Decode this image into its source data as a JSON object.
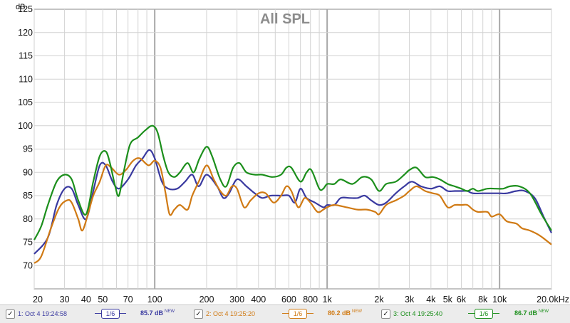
{
  "chart_data": {
    "type": "line",
    "title": "All SPL",
    "ylabel": "dB",
    "x_scale": "log",
    "xlim": [
      20,
      20000
    ],
    "ylim": [
      65,
      125
    ],
    "y_ticks": [
      70,
      75,
      80,
      85,
      90,
      95,
      100,
      105,
      110,
      115,
      120,
      125
    ],
    "x_ticks": [
      {
        "v": 20,
        "label": "20"
      },
      {
        "v": 30,
        "label": "30"
      },
      {
        "v": 40,
        "label": "40"
      },
      {
        "v": 50,
        "label": "50"
      },
      {
        "v": 70,
        "label": "70"
      },
      {
        "v": 100,
        "label": "100"
      },
      {
        "v": 200,
        "label": "200"
      },
      {
        "v": 300,
        "label": "300"
      },
      {
        "v": 400,
        "label": "400"
      },
      {
        "v": 600,
        "label": "600"
      },
      {
        "v": 800,
        "label": "800"
      },
      {
        "v": 1000,
        "label": "1k"
      },
      {
        "v": 2000,
        "label": "2k"
      },
      {
        "v": 3000,
        "label": "3k"
      },
      {
        "v": 4000,
        "label": "4k"
      },
      {
        "v": 5000,
        "label": "5k"
      },
      {
        "v": 6000,
        "label": "6k"
      },
      {
        "v": 8000,
        "label": "8k"
      },
      {
        "v": 10000,
        "label": "10k"
      },
      {
        "v": 20000,
        "label": "20.0kHz"
      }
    ],
    "grid": true,
    "series": [
      {
        "name": "1: Oct 4 19:24:58",
        "color": "#3a3aa0",
        "smoothing": "1/6",
        "level": "85.7 dB",
        "points": [
          [
            20,
            72.5
          ],
          [
            24,
            76
          ],
          [
            27,
            83
          ],
          [
            30,
            86.5
          ],
          [
            33,
            86.5
          ],
          [
            36,
            83
          ],
          [
            40,
            80
          ],
          [
            44,
            86
          ],
          [
            48,
            91.5
          ],
          [
            52,
            91.5
          ],
          [
            57,
            88
          ],
          [
            62,
            86.5
          ],
          [
            70,
            88.5
          ],
          [
            78,
            91.5
          ],
          [
            85,
            93
          ],
          [
            93,
            94.8
          ],
          [
            100,
            93
          ],
          [
            110,
            88
          ],
          [
            120,
            86.5
          ],
          [
            135,
            86.5
          ],
          [
            150,
            88
          ],
          [
            165,
            89.5
          ],
          [
            180,
            87
          ],
          [
            200,
            89.5
          ],
          [
            230,
            87
          ],
          [
            250,
            84.5
          ],
          [
            270,
            85.5
          ],
          [
            300,
            88.5
          ],
          [
            340,
            87
          ],
          [
            380,
            85.5
          ],
          [
            420,
            84.5
          ],
          [
            470,
            85
          ],
          [
            540,
            85
          ],
          [
            600,
            85
          ],
          [
            650,
            83.5
          ],
          [
            700,
            86.5
          ],
          [
            760,
            84.5
          ],
          [
            850,
            83.5
          ],
          [
            950,
            82.5
          ],
          [
            1000,
            83
          ],
          [
            1100,
            83
          ],
          [
            1200,
            84.5
          ],
          [
            1350,
            84.5
          ],
          [
            1500,
            84.5
          ],
          [
            1650,
            85
          ],
          [
            1800,
            84
          ],
          [
            2000,
            83
          ],
          [
            2200,
            83.5
          ],
          [
            2500,
            85.5
          ],
          [
            2800,
            87
          ],
          [
            3100,
            88
          ],
          [
            3500,
            87
          ],
          [
            4000,
            86.5
          ],
          [
            4500,
            87
          ],
          [
            5000,
            86
          ],
          [
            5500,
            86
          ],
          [
            6000,
            86
          ],
          [
            6500,
            86
          ],
          [
            7000,
            85.5
          ],
          [
            8000,
            85.5
          ],
          [
            9000,
            85.5
          ],
          [
            10000,
            85.5
          ],
          [
            11000,
            85.5
          ],
          [
            12500,
            86
          ],
          [
            14000,
            86
          ],
          [
            16000,
            84.5
          ],
          [
            18000,
            80.5
          ],
          [
            20000,
            77
          ]
        ]
      },
      {
        "name": "2: Oct 4 19:25:20",
        "color": "#d07a14",
        "smoothing": "1/6",
        "level": "80.2 dB",
        "points": [
          [
            20,
            70.5
          ],
          [
            22,
            72
          ],
          [
            25,
            78
          ],
          [
            28,
            82.5
          ],
          [
            31,
            84
          ],
          [
            33,
            83.5
          ],
          [
            36,
            80
          ],
          [
            38,
            77.5
          ],
          [
            41,
            81
          ],
          [
            44,
            85
          ],
          [
            48,
            88
          ],
          [
            52,
            91.5
          ],
          [
            56,
            91
          ],
          [
            62,
            89.5
          ],
          [
            68,
            90.5
          ],
          [
            75,
            92.5
          ],
          [
            82,
            93
          ],
          [
            92,
            91.5
          ],
          [
            100,
            92.5
          ],
          [
            108,
            91
          ],
          [
            115,
            86
          ],
          [
            122,
            81
          ],
          [
            130,
            82
          ],
          [
            140,
            83
          ],
          [
            155,
            82
          ],
          [
            165,
            85
          ],
          [
            180,
            88
          ],
          [
            200,
            91.5
          ],
          [
            220,
            88.5
          ],
          [
            240,
            86
          ],
          [
            260,
            85
          ],
          [
            280,
            87
          ],
          [
            300,
            86.5
          ],
          [
            330,
            82.5
          ],
          [
            360,
            84
          ],
          [
            400,
            85.5
          ],
          [
            440,
            85.5
          ],
          [
            490,
            83.5
          ],
          [
            540,
            85
          ],
          [
            580,
            87
          ],
          [
            620,
            86
          ],
          [
            680,
            82.5
          ],
          [
            740,
            84.5
          ],
          [
            800,
            83.5
          ],
          [
            880,
            81.5
          ],
          [
            950,
            82
          ],
          [
            1000,
            82.5
          ],
          [
            1100,
            83
          ],
          [
            1300,
            82.5
          ],
          [
            1500,
            82
          ],
          [
            1700,
            82
          ],
          [
            1900,
            81.5
          ],
          [
            2000,
            81
          ],
          [
            2200,
            83
          ],
          [
            2500,
            84
          ],
          [
            2800,
            85
          ],
          [
            3000,
            86
          ],
          [
            3300,
            87
          ],
          [
            3700,
            86
          ],
          [
            4100,
            85.5
          ],
          [
            4500,
            85
          ],
          [
            5000,
            82.5
          ],
          [
            5500,
            83
          ],
          [
            6000,
            83
          ],
          [
            6500,
            83
          ],
          [
            7000,
            82
          ],
          [
            7500,
            81.5
          ],
          [
            8500,
            81.5
          ],
          [
            9000,
            80.5
          ],
          [
            10000,
            81
          ],
          [
            11000,
            79.5
          ],
          [
            12500,
            79
          ],
          [
            13500,
            78
          ],
          [
            15000,
            77.5
          ],
          [
            17000,
            76.5
          ],
          [
            20000,
            74.5
          ]
        ]
      },
      {
        "name": "3: Oct 4 19:25:40",
        "color": "#1c8f1c",
        "smoothing": "1/6",
        "level": "86.7 dB",
        "points": [
          [
            20,
            75.5
          ],
          [
            22,
            78.5
          ],
          [
            24,
            83
          ],
          [
            27,
            88
          ],
          [
            30,
            89.5
          ],
          [
            33,
            88.5
          ],
          [
            36,
            84
          ],
          [
            40,
            81
          ],
          [
            44,
            88
          ],
          [
            48,
            93.5
          ],
          [
            52,
            94.5
          ],
          [
            55,
            92
          ],
          [
            59,
            87
          ],
          [
            62,
            85
          ],
          [
            66,
            90
          ],
          [
            72,
            96
          ],
          [
            80,
            97.5
          ],
          [
            88,
            99
          ],
          [
            97,
            100
          ],
          [
            104,
            98.5
          ],
          [
            112,
            93.5
          ],
          [
            120,
            90
          ],
          [
            130,
            89
          ],
          [
            140,
            90
          ],
          [
            155,
            92
          ],
          [
            168,
            90
          ],
          [
            182,
            93
          ],
          [
            200,
            95.5
          ],
          [
            215,
            93.5
          ],
          [
            240,
            88.5
          ],
          [
            260,
            87
          ],
          [
            285,
            91
          ],
          [
            310,
            92
          ],
          [
            340,
            90
          ],
          [
            380,
            89.5
          ],
          [
            420,
            89.5
          ],
          [
            480,
            89
          ],
          [
            540,
            89.5
          ],
          [
            580,
            91
          ],
          [
            620,
            91
          ],
          [
            700,
            88
          ],
          [
            760,
            90
          ],
          [
            810,
            90.5
          ],
          [
            900,
            86.5
          ],
          [
            950,
            86.5
          ],
          [
            1000,
            87.5
          ],
          [
            1100,
            87.5
          ],
          [
            1200,
            88.5
          ],
          [
            1400,
            87.5
          ],
          [
            1600,
            89
          ],
          [
            1800,
            88.5
          ],
          [
            2000,
            86
          ],
          [
            2200,
            87.5
          ],
          [
            2500,
            88
          ],
          [
            2800,
            89.5
          ],
          [
            3000,
            90.5
          ],
          [
            3300,
            91
          ],
          [
            3700,
            89
          ],
          [
            4100,
            89
          ],
          [
            4500,
            88.5
          ],
          [
            5000,
            87.5
          ],
          [
            5500,
            87
          ],
          [
            6000,
            86.5
          ],
          [
            6500,
            86
          ],
          [
            7000,
            86.5
          ],
          [
            7500,
            86
          ],
          [
            8500,
            86.5
          ],
          [
            9500,
            86.5
          ],
          [
            10500,
            86.5
          ],
          [
            11500,
            87
          ],
          [
            13000,
            87
          ],
          [
            15000,
            85.5
          ],
          [
            17500,
            81
          ],
          [
            20000,
            77.5
          ]
        ]
      }
    ]
  },
  "legend": [
    {
      "check": "✓",
      "name": "1: Oct 4 19:24:58",
      "smoothing": "1/6",
      "level": "85.7 dB",
      "badge": "NEW",
      "color": "#3a3aa0"
    },
    {
      "check": "✓",
      "name": "2: Oct 4 19:25:20",
      "smoothing": "1/6",
      "level": "80.2 dB",
      "badge": "NEW",
      "color": "#d07a14"
    },
    {
      "check": "✓",
      "name": "3: Oct 4 19:25:40",
      "smoothing": "1/6",
      "level": "86.7 dB",
      "badge": "NEW",
      "color": "#1c8f1c"
    }
  ]
}
